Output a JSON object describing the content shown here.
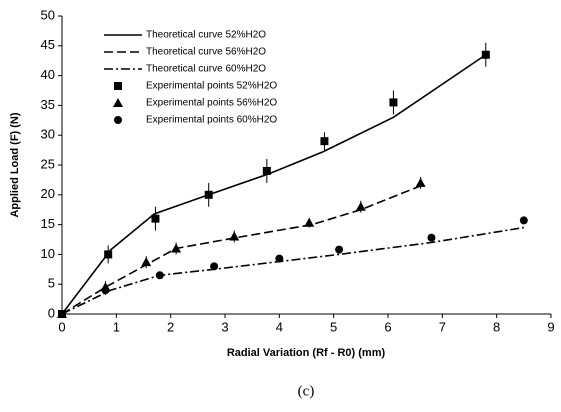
{
  "chart_data": {
    "type": "line",
    "caption": "(c)",
    "x_label": "Radial Variation (Rf - R0) (mm)",
    "y_label": "Applied Load (F) (N)",
    "xlim": [
      0,
      9
    ],
    "xticks": [
      0,
      1,
      2,
      3,
      4,
      5,
      6,
      7,
      8,
      9
    ],
    "ylim": [
      0,
      50
    ],
    "yticks": [
      0,
      5,
      10,
      15,
      20,
      25,
      30,
      35,
      40,
      45,
      50
    ],
    "grid": false,
    "legend": "upper-left",
    "series": [
      {
        "name": "Theoretical curve 52%H2O",
        "kind": "line",
        "dash": "solid",
        "color": "#000000",
        "x": [
          0,
          0.9,
          1.7,
          2.7,
          3.8,
          4.8,
          6.1,
          7.8
        ],
        "values": [
          0,
          10.8,
          16.8,
          20,
          23.5,
          27.2,
          33,
          43.5
        ]
      },
      {
        "name": "Theoretical curve 56%H2O",
        "kind": "line",
        "dash": "dashed",
        "color": "#000000",
        "x": [
          0,
          0.8,
          1.6,
          2.1,
          3.2,
          4.6,
          5.5,
          6.6
        ],
        "values": [
          0,
          4.5,
          8.5,
          11,
          12.8,
          15,
          17.5,
          21.5
        ]
      },
      {
        "name": "Theoretical curve 60%H2O",
        "kind": "line",
        "dash": "dashdot",
        "color": "#000000",
        "x": [
          0,
          0.9,
          1.8,
          2.8,
          4,
          5.1,
          6.8,
          8.5
        ],
        "values": [
          0,
          4,
          6.5,
          7.5,
          8.8,
          10,
          12,
          14.5
        ]
      },
      {
        "name": "Experimental points 52%H2O",
        "kind": "scatter",
        "marker": "square",
        "color": "#000000",
        "x": [
          0,
          0.85,
          1.72,
          2.7,
          3.77,
          4.83,
          6.1,
          7.8
        ],
        "values": [
          0,
          10,
          16,
          20,
          24,
          29,
          35.5,
          43.5
        ],
        "errors": [
          0,
          1.5,
          2,
          2,
          2,
          1.5,
          2,
          2
        ]
      },
      {
        "name": "Experimental points 56%H2O",
        "kind": "scatter",
        "marker": "triangle",
        "color": "#000000",
        "x": [
          0,
          0.8,
          1.55,
          2.1,
          3.17,
          4.55,
          5.5,
          6.6
        ],
        "values": [
          0,
          4.5,
          8.7,
          11,
          13,
          15.3,
          18,
          22
        ],
        "errors": [
          0,
          1,
          1,
          1,
          1,
          0.8,
          1,
          1
        ]
      },
      {
        "name": "Experimental points 60%H2O",
        "kind": "scatter",
        "marker": "circle",
        "color": "#000000",
        "x": [
          0,
          0.8,
          1.8,
          2.8,
          4,
          5.1,
          6.8,
          8.5
        ],
        "values": [
          0,
          4,
          6.5,
          8,
          9.3,
          10.8,
          12.8,
          15.7
        ],
        "errors": [
          0,
          0.8,
          0.5,
          0.5,
          0.5,
          0.5,
          0.5,
          0.5
        ]
      }
    ]
  }
}
